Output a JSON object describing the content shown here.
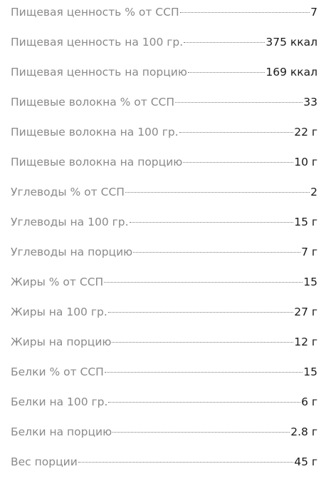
{
  "nutrition": {
    "rows": [
      {
        "label": "Пищевая ценность % от ССП",
        "value": "7"
      },
      {
        "label": "Пищевая ценность на 100 гр.",
        "value": "375 ккал"
      },
      {
        "label": "Пищевая ценность на порцию",
        "value": "169 ккал"
      },
      {
        "label": "Пищевые волокна % от ССП",
        "value": "33"
      },
      {
        "label": "Пищевые волокна на 100 гр.",
        "value": "22 г"
      },
      {
        "label": "Пищевые волокна на порцию",
        "value": "10 г"
      },
      {
        "label": "Углеводы % от ССП",
        "value": "2"
      },
      {
        "label": "Углеводы на 100 гр.",
        "value": "15 г"
      },
      {
        "label": "Углеводы на порцию",
        "value": "7 г"
      },
      {
        "label": "Жиры % от ССП",
        "value": "15"
      },
      {
        "label": "Жиры на 100 гр.",
        "value": "27 г"
      },
      {
        "label": "Жиры на порцию",
        "value": "12 г"
      },
      {
        "label": "Белки % от ССП",
        "value": "15"
      },
      {
        "label": "Белки на 100 гр.",
        "value": "6 г"
      },
      {
        "label": "Белки на порцию",
        "value": "2.8 г"
      },
      {
        "label": "Вес порции",
        "value": "45 г"
      }
    ]
  },
  "colors": {
    "label": "#8a8a8a",
    "value": "#1a1a1a",
    "leader": "#7a7a7a",
    "background": "#ffffff"
  }
}
